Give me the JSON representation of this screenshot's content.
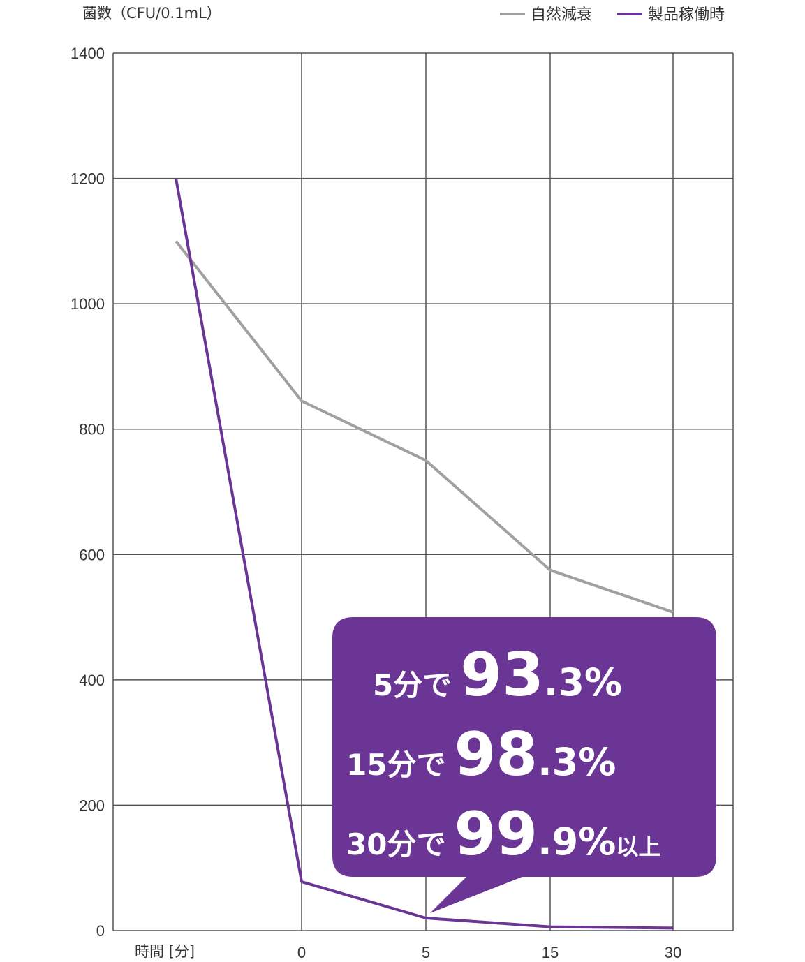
{
  "chart_data": {
    "type": "line",
    "ylabel": "菌数（CFU/0.1mL）",
    "xlabel": "時間 [分]",
    "categories": [
      "",
      "0",
      "5",
      "15",
      "30"
    ],
    "ylim": [
      0,
      1400
    ],
    "yticks": [
      0,
      200,
      400,
      600,
      800,
      1000,
      1200,
      1400
    ],
    "grid": true,
    "legend_position": "top-right",
    "series": [
      {
        "name": "自然減衰",
        "color": "#a0a0a0",
        "values": [
          1100,
          845,
          750,
          575,
          508
        ]
      },
      {
        "name": "製品稼働時",
        "color": "#6a3594",
        "values": [
          1200,
          78,
          20,
          6,
          4
        ]
      }
    ],
    "callout": {
      "color": "#6a3594",
      "lines": [
        {
          "prefix": "5分で",
          "big": "93",
          "small": ".3%",
          "suffix": ""
        },
        {
          "prefix": "15分で",
          "big": "98",
          "small": ".3%",
          "suffix": ""
        },
        {
          "prefix": "30分で",
          "big": "99",
          "small": ".9%",
          "suffix": "以上"
        }
      ]
    }
  }
}
